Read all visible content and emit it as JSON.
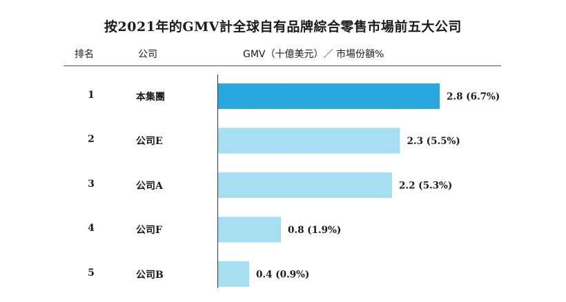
{
  "title": "按2021年的GMV計全球自有品牌綜合零售市場前五大公司",
  "headers": {
    "rank": "排名",
    "company": "公司",
    "gmv": "GMV（十億美元）／ 市場份額%"
  },
  "colors": {
    "highlight": "#29A8E0",
    "others": "#A6DEF2"
  },
  "chart_data": {
    "type": "bar",
    "orientation": "horizontal",
    "title": "按2021年的GMV計全球自有品牌綜合零售市場前五大公司",
    "ranks": [
      "1",
      "2",
      "3",
      "4",
      "5"
    ],
    "categories": [
      "本集團",
      "公司E",
      "公司A",
      "公司F",
      "公司B"
    ],
    "values": [
      2.8,
      2.3,
      2.2,
      0.8,
      0.4
    ],
    "shares_percent": [
      6.7,
      5.5,
      5.3,
      1.9,
      0.9
    ],
    "labels": [
      "2.8 (6.7%)",
      "2.3 (5.5%)",
      "2.2 (5.3%)",
      "0.8 (1.9%)",
      "0.4 (0.9%)"
    ],
    "xlabel": "GMV（十億美元）／ 市場份額%",
    "xlim": [
      0,
      2.8
    ],
    "grid": false,
    "legend": "none"
  }
}
